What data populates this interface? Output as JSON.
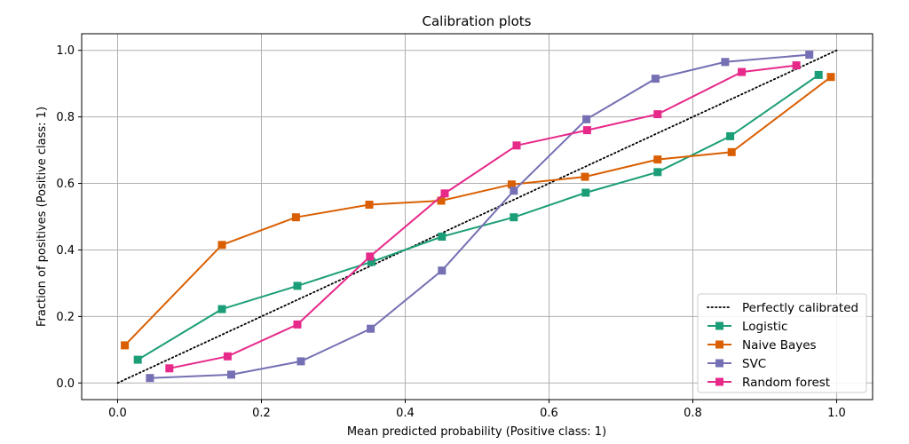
{
  "chart_data": {
    "type": "line",
    "title": "Calibration plots",
    "xlabel": "Mean predicted probability (Positive class: 1)",
    "ylabel": "Fraction of positives (Positive class: 1)",
    "xlim": [
      -0.05,
      1.05
    ],
    "ylim": [
      -0.05,
      1.05
    ],
    "xticks": [
      "0.0",
      "0.2",
      "0.4",
      "0.6",
      "0.8",
      "1.0"
    ],
    "yticks": [
      "0.0",
      "0.2",
      "0.4",
      "0.6",
      "0.8",
      "1.0"
    ],
    "grid": true,
    "legend_position": "lower-right",
    "reference_line": {
      "name": "Perfectly calibrated",
      "x": [
        0,
        1
      ],
      "y": [
        0,
        1
      ],
      "style": "dotted",
      "color": "#000000"
    },
    "series": [
      {
        "name": "Logistic",
        "color": "#1b9e77",
        "marker": "square",
        "x": [
          0.028,
          0.145,
          0.25,
          0.353,
          0.451,
          0.551,
          0.651,
          0.751,
          0.852,
          0.975
        ],
        "y": [
          0.07,
          0.222,
          0.292,
          0.364,
          0.44,
          0.498,
          0.572,
          0.634,
          0.742,
          0.926
        ]
      },
      {
        "name": "Naive Bayes",
        "color": "#d95f02",
        "marker": "square",
        "x": [
          0.01,
          0.145,
          0.248,
          0.35,
          0.45,
          0.548,
          0.65,
          0.751,
          0.854,
          0.992
        ],
        "y": [
          0.113,
          0.415,
          0.498,
          0.536,
          0.548,
          0.597,
          0.62,
          0.672,
          0.694,
          0.92
        ]
      },
      {
        "name": "SVC",
        "color": "#7570b3",
        "marker": "square",
        "x": [
          0.045,
          0.158,
          0.255,
          0.352,
          0.451,
          0.551,
          0.652,
          0.748,
          0.845,
          0.962
        ],
        "y": [
          0.015,
          0.025,
          0.065,
          0.163,
          0.338,
          0.578,
          0.793,
          0.915,
          0.965,
          0.987
        ]
      },
      {
        "name": "Random forest",
        "color": "#e7298a",
        "marker": "square",
        "x": [
          0.072,
          0.153,
          0.25,
          0.351,
          0.455,
          0.555,
          0.653,
          0.751,
          0.868,
          0.944
        ],
        "y": [
          0.044,
          0.08,
          0.176,
          0.38,
          0.57,
          0.714,
          0.76,
          0.808,
          0.935,
          0.955
        ]
      }
    ]
  }
}
